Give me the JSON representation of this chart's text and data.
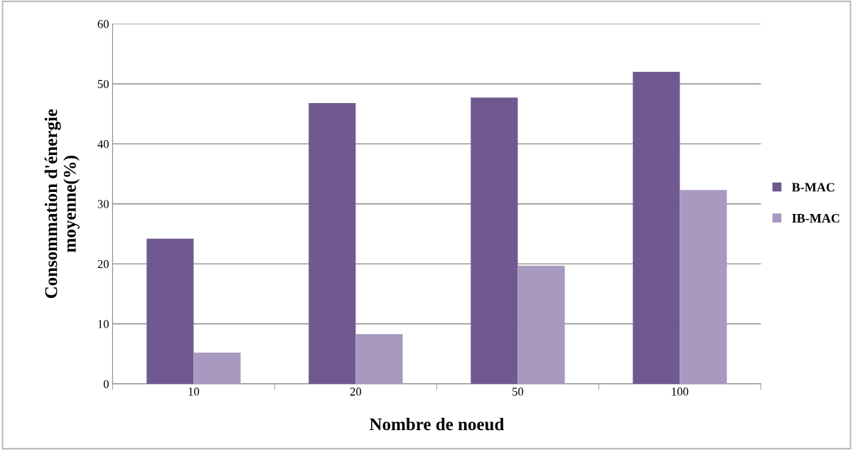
{
  "chart_data": {
    "type": "bar",
    "xlabel": "Nombre de noeud",
    "ylabel": "Consommation d'énergie\nmoyenne(%)",
    "categories": [
      "10",
      "20",
      "50",
      "100"
    ],
    "series": [
      {
        "name": "B-MAC",
        "color": "#705890",
        "values": [
          24.2,
          46.8,
          47.7,
          52.0
        ]
      },
      {
        "name": "IB-MAC",
        "color": "#a899c0",
        "values": [
          5.2,
          8.3,
          19.7,
          32.3
        ]
      }
    ],
    "ylim": [
      0,
      60
    ],
    "yticks": [
      0,
      10,
      20,
      30,
      40,
      50,
      60
    ],
    "grid": "y",
    "legend": "right"
  }
}
